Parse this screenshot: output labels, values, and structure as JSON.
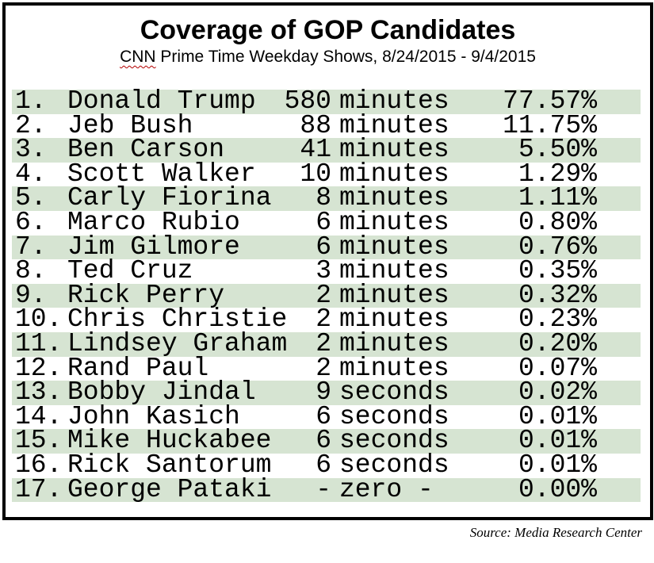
{
  "page": {
    "title": "Coverage of GOP Candidates",
    "subtitle_highlight": "CNN",
    "subtitle_rest": " Prime Time Weekday Shows, 8/24/2015 - 9/4/2015",
    "source": "Source: Media Research Center"
  },
  "colors": {
    "row_highlight_green": "#d6e4d2",
    "frame_border": "#000000",
    "spellcheck_underline": "#b40000",
    "text": "#000000"
  },
  "rows": [
    {
      "rank": "1.",
      "name": "Donald Trump",
      "time_value": "580",
      "time_unit": "minutes",
      "percent": "77.57%"
    },
    {
      "rank": "2.",
      "name": "Jeb Bush",
      "time_value": "88",
      "time_unit": "minutes",
      "percent": "11.75%"
    },
    {
      "rank": "3.",
      "name": "Ben Carson",
      "time_value": "41",
      "time_unit": "minutes",
      "percent": "5.50%"
    },
    {
      "rank": "4.",
      "name": "Scott Walker",
      "time_value": "10",
      "time_unit": "minutes",
      "percent": "1.29%"
    },
    {
      "rank": "5.",
      "name": "Carly Fiorina",
      "time_value": "8",
      "time_unit": "minutes",
      "percent": "1.11%"
    },
    {
      "rank": "6.",
      "name": "Marco Rubio",
      "time_value": "6",
      "time_unit": "minutes",
      "percent": "0.80%"
    },
    {
      "rank": "7.",
      "name": "Jim Gilmore",
      "time_value": "6",
      "time_unit": "minutes",
      "percent": "0.76%"
    },
    {
      "rank": "8.",
      "name": "Ted Cruz",
      "time_value": "3",
      "time_unit": "minutes",
      "percent": "0.35%"
    },
    {
      "rank": "9.",
      "name": "Rick Perry",
      "time_value": "2",
      "time_unit": "minutes",
      "percent": "0.32%"
    },
    {
      "rank": "10.",
      "name": "Chris Christie",
      "time_value": "2",
      "time_unit": "minutes",
      "percent": "0.23%"
    },
    {
      "rank": "11.",
      "name": "Lindsey Graham",
      "time_value": "2",
      "time_unit": "minutes",
      "percent": "0.20%"
    },
    {
      "rank": "12.",
      "name": "Rand Paul",
      "time_value": "2",
      "time_unit": "minutes",
      "percent": "0.07%"
    },
    {
      "rank": "13.",
      "name": "Bobby Jindal",
      "time_value": "9",
      "time_unit": "seconds",
      "percent": "0.02%"
    },
    {
      "rank": "14.",
      "name": "John Kasich",
      "time_value": "6",
      "time_unit": "seconds",
      "percent": "0.01%"
    },
    {
      "rank": "15.",
      "name": "Mike Huckabee",
      "time_value": "6",
      "time_unit": "seconds",
      "percent": "0.01%"
    },
    {
      "rank": "16.",
      "name": "Rick Santorum",
      "time_value": "6",
      "time_unit": "seconds",
      "percent": "0.01%"
    },
    {
      "rank": "17.",
      "name": "George Pataki",
      "time_value": "-",
      "time_unit": "zero -",
      "percent": "0.00%"
    }
  ],
  "chart_data": {
    "type": "table",
    "title": "Coverage of GOP Candidates",
    "subtitle": "CNN Prime Time Weekday Shows, 8/24/2015 - 9/4/2015",
    "columns": [
      "rank",
      "candidate",
      "coverage_time",
      "share_percent"
    ],
    "rows": [
      [
        1,
        "Donald Trump",
        "580 minutes",
        77.57
      ],
      [
        2,
        "Jeb Bush",
        "88 minutes",
        11.75
      ],
      [
        3,
        "Ben Carson",
        "41 minutes",
        5.5
      ],
      [
        4,
        "Scott Walker",
        "10 minutes",
        1.29
      ],
      [
        5,
        "Carly Fiorina",
        "8 minutes",
        1.11
      ],
      [
        6,
        "Marco Rubio",
        "6 minutes",
        0.8
      ],
      [
        7,
        "Jim Gilmore",
        "6 minutes",
        0.76
      ],
      [
        8,
        "Ted Cruz",
        "3 minutes",
        0.35
      ],
      [
        9,
        "Rick Perry",
        "2 minutes",
        0.32
      ],
      [
        10,
        "Chris Christie",
        "2 minutes",
        0.23
      ],
      [
        11,
        "Lindsey Graham",
        "2 minutes",
        0.2
      ],
      [
        12,
        "Rand Paul",
        "2 minutes",
        0.07
      ],
      [
        13,
        "Bobby Jindal",
        "9 seconds",
        0.02
      ],
      [
        14,
        "John Kasich",
        "6 seconds",
        0.01
      ],
      [
        15,
        "Mike Huckabee",
        "6 seconds",
        0.01
      ],
      [
        16,
        "Rick Santorum",
        "6 seconds",
        0.01
      ],
      [
        17,
        "George Pataki",
        "- zero -",
        0.0
      ]
    ],
    "source": "Source: Media Research Center",
    "layout": {
      "row_striping": "odd-rows-green",
      "grid": false,
      "legend": "none"
    }
  }
}
